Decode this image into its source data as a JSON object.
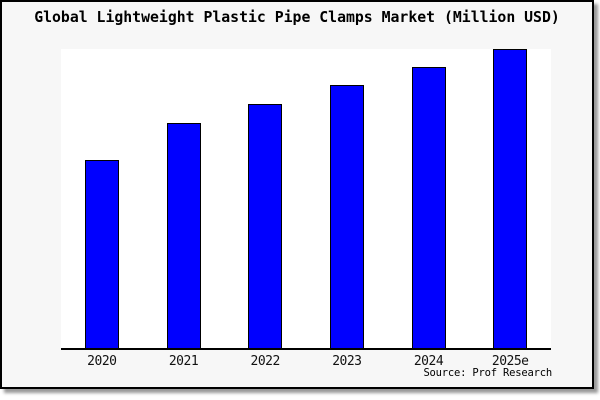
{
  "title": "Global Lightweight Plastic Pipe Clamps Market (Million USD)",
  "source": "Source: Prof Research",
  "colors": {
    "canvas_background": "#f7f7f7",
    "plot_background": "#ffffff",
    "frame_border": "#000000",
    "bar_fill": "#0000FF",
    "bar_border": "#000000",
    "axis_line": "#000000"
  },
  "chart_data": {
    "type": "bar",
    "title": "Global Lightweight Plastic Pipe Clamps Market (Million USD)",
    "categories": [
      "2020",
      "2021",
      "2022",
      "2023",
      "2024",
      "2025e"
    ],
    "values": [
      62.9,
      75.3,
      81.6,
      88.0,
      94.0,
      100.0
    ],
    "value_scale": "percent of tallest bar; chart displays no y-axis, tick values, or data labels",
    "xlabel": "",
    "ylabel": "",
    "ylim": [
      0,
      100
    ],
    "grid": false,
    "legend": false,
    "bar_color": "#0000FF",
    "bar_border_color": "#000000",
    "source_note": "Source: Prof Research"
  }
}
